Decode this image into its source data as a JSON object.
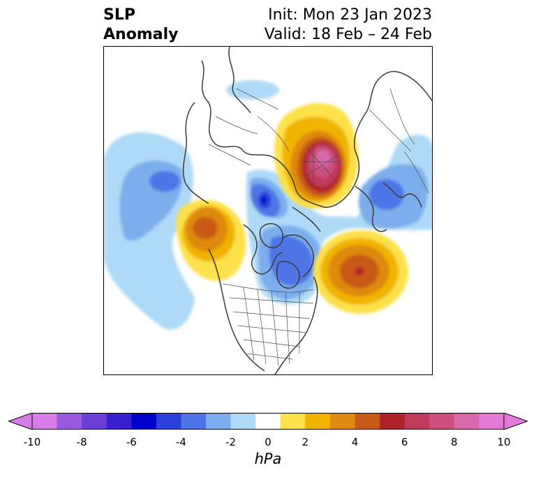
{
  "title": {
    "line1": "SLP",
    "line2": "Anomaly"
  },
  "init_text": "Init: Mon 23 Jan 2023",
  "valid_text": "Valid: 18 Feb – 24 Feb",
  "map": {
    "projection": "north-polar-stereographic",
    "features": [
      "coastlines",
      "country-borders",
      "us-state-borders"
    ],
    "anomaly_centers": [
      {
        "region": "Siberia / Arctic",
        "sign": "positive",
        "peak_hpa": 10
      },
      {
        "region": "Gulf of Alaska",
        "sign": "positive",
        "peak_hpa": 6
      },
      {
        "region": "North Atlantic",
        "sign": "positive",
        "peak_hpa": 6
      },
      {
        "region": "Bering Sea / North Pacific",
        "sign": "negative",
        "peak_hpa": -4
      },
      {
        "region": "Northern Canada",
        "sign": "negative",
        "peak_hpa": -6
      },
      {
        "region": "Northern Europe",
        "sign": "negative",
        "peak_hpa": -4
      },
      {
        "region": "Hudson Bay / Eastern Canada",
        "sign": "negative",
        "peak_hpa": -4
      }
    ]
  },
  "colorbar": {
    "unit": "hPa",
    "extend": "both",
    "bounds": [
      -10,
      -9,
      -8,
      -7,
      -6,
      -5,
      -4,
      -3,
      -2,
      -1,
      1,
      2,
      3,
      4,
      5,
      6,
      7,
      8,
      9,
      10
    ],
    "colors": [
      "#d67be8",
      "#9b59e0",
      "#6b3ed6",
      "#3a1fd0",
      "#0000cc",
      "#2a3fd8",
      "#4d74e6",
      "#7baeed",
      "#aedaf7",
      "#ffffff",
      "#fde14c",
      "#f0b400",
      "#de8a10",
      "#c85a18",
      "#b0222a",
      "#c03a5a",
      "#cc4f80",
      "#d86aac",
      "#e47ad8"
    ],
    "under_color": "#d67be8",
    "over_color": "#e47ad8",
    "tick_values": [
      -10,
      -8,
      -6,
      -4,
      -2,
      0,
      2,
      4,
      6,
      8,
      10
    ],
    "tick_labels": [
      "-10",
      "-8",
      "-6",
      "-4",
      "-2",
      "0",
      "2",
      "4",
      "6",
      "8",
      "10"
    ]
  }
}
